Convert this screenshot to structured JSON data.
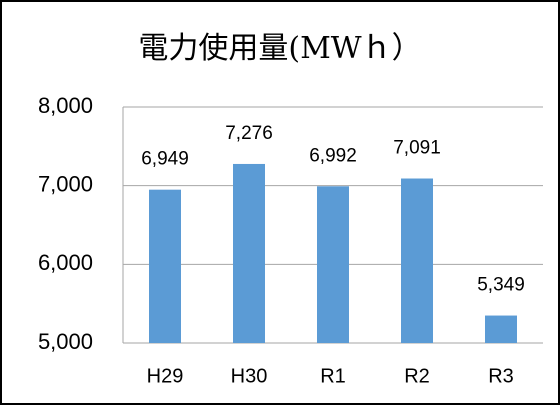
{
  "chart_data": {
    "type": "bar",
    "title": "電力使用量(MWｈ）",
    "categories": [
      "H29",
      "H30",
      "R1",
      "R2",
      "R3"
    ],
    "values": [
      6949,
      7276,
      6992,
      7091,
      5349
    ],
    "value_labels": [
      "6,949",
      "7,276",
      "6,992",
      "7,091",
      "5,349"
    ],
    "color": "#5b9bd5",
    "ylim": [
      5000,
      8000
    ],
    "yticks": [
      {
        "value": 5000,
        "label": "5,000"
      },
      {
        "value": 6000,
        "label": "6,000"
      },
      {
        "value": 7000,
        "label": "7,000"
      },
      {
        "value": 8000,
        "label": "8,000"
      }
    ],
    "grid": true
  }
}
